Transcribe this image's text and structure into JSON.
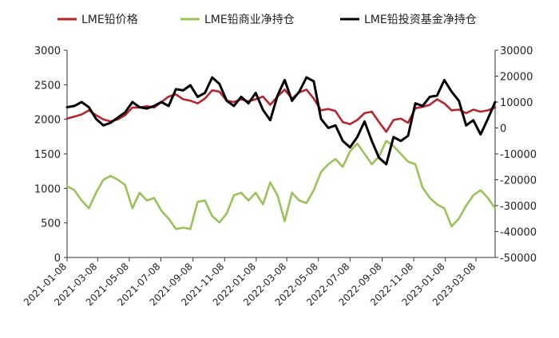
{
  "chart_data": {
    "type": "line",
    "title": "",
    "legend_position": "top",
    "grid": false,
    "x_axis": {
      "tick_labels": [
        "2021-01-08",
        "2021-03-08",
        "2021-05-08",
        "2021-07-08",
        "2021-09-08",
        "2021-11-08",
        "2022-01-08",
        "2022-03-08",
        "2022-05-08",
        "2022-07-08",
        "2022-09-08",
        "2022-11-08",
        "2023-01-08",
        "2023-03-08"
      ]
    },
    "y_left": {
      "range": [
        0,
        3000
      ],
      "ticks": [
        0,
        500,
        1000,
        1500,
        2000,
        2500,
        3000
      ]
    },
    "y_right": {
      "range": [
        -50000,
        30000
      ],
      "ticks": [
        -50000,
        -40000,
        -30000,
        -20000,
        -10000,
        0,
        10000,
        20000,
        30000
      ]
    },
    "series": [
      {
        "name": "LME铅价格",
        "axis": "left",
        "color": "#b5262e",
        "points": [
          [
            "2021-01-08",
            2010
          ],
          [
            "2021-01-22",
            2040
          ],
          [
            "2021-02-05",
            2070
          ],
          [
            "2021-02-19",
            2130
          ],
          [
            "2021-03-05",
            2060
          ],
          [
            "2021-03-19",
            2000
          ],
          [
            "2021-04-02",
            1970
          ],
          [
            "2021-04-16",
            2000
          ],
          [
            "2021-04-30",
            2060
          ],
          [
            "2021-05-14",
            2170
          ],
          [
            "2021-05-28",
            2170
          ],
          [
            "2021-06-11",
            2190
          ],
          [
            "2021-06-25",
            2170
          ],
          [
            "2021-07-09",
            2250
          ],
          [
            "2021-07-23",
            2330
          ],
          [
            "2021-08-06",
            2360
          ],
          [
            "2021-08-20",
            2290
          ],
          [
            "2021-09-03",
            2270
          ],
          [
            "2021-09-17",
            2230
          ],
          [
            "2021-10-01",
            2300
          ],
          [
            "2021-10-15",
            2420
          ],
          [
            "2021-10-29",
            2400
          ],
          [
            "2021-11-12",
            2270
          ],
          [
            "2021-11-26",
            2250
          ],
          [
            "2021-12-10",
            2290
          ],
          [
            "2021-12-24",
            2260
          ],
          [
            "2022-01-07",
            2290
          ],
          [
            "2022-01-21",
            2330
          ],
          [
            "2022-02-04",
            2210
          ],
          [
            "2022-02-18",
            2330
          ],
          [
            "2022-03-04",
            2430
          ],
          [
            "2022-03-18",
            2300
          ],
          [
            "2022-04-01",
            2390
          ],
          [
            "2022-04-15",
            2430
          ],
          [
            "2022-04-29",
            2300
          ],
          [
            "2022-05-13",
            2130
          ],
          [
            "2022-05-27",
            2150
          ],
          [
            "2022-06-10",
            2120
          ],
          [
            "2022-06-24",
            1960
          ],
          [
            "2022-07-08",
            1930
          ],
          [
            "2022-07-22",
            1990
          ],
          [
            "2022-08-05",
            2090
          ],
          [
            "2022-08-19",
            2110
          ],
          [
            "2022-09-02",
            1960
          ],
          [
            "2022-09-16",
            1820
          ],
          [
            "2022-09-30",
            1990
          ],
          [
            "2022-10-14",
            2010
          ],
          [
            "2022-10-28",
            1950
          ],
          [
            "2022-11-11",
            2160
          ],
          [
            "2022-11-25",
            2180
          ],
          [
            "2022-12-09",
            2210
          ],
          [
            "2022-12-23",
            2290
          ],
          [
            "2023-01-06",
            2230
          ],
          [
            "2023-01-20",
            2130
          ],
          [
            "2023-02-03",
            2140
          ],
          [
            "2023-02-17",
            2090
          ],
          [
            "2023-03-03",
            2140
          ],
          [
            "2023-03-17",
            2110
          ],
          [
            "2023-03-31",
            2130
          ],
          [
            "2023-04-14",
            2170
          ]
        ]
      },
      {
        "name": "LME铅商业净持仓",
        "axis": "right",
        "color": "#9dc15a",
        "points": [
          [
            "2021-01-08",
            -22500
          ],
          [
            "2021-01-22",
            -24000
          ],
          [
            "2021-02-05",
            -28000
          ],
          [
            "2021-02-19",
            -31000
          ],
          [
            "2021-03-05",
            -25000
          ],
          [
            "2021-03-19",
            -20000
          ],
          [
            "2021-04-02",
            -18500
          ],
          [
            "2021-04-16",
            -20000
          ],
          [
            "2021-04-30",
            -22000
          ],
          [
            "2021-05-14",
            -31000
          ],
          [
            "2021-05-28",
            -25000
          ],
          [
            "2021-06-11",
            -28000
          ],
          [
            "2021-06-25",
            -27000
          ],
          [
            "2021-07-09",
            -32000
          ],
          [
            "2021-07-23",
            -35000
          ],
          [
            "2021-08-06",
            -39000
          ],
          [
            "2021-08-20",
            -38500
          ],
          [
            "2021-09-03",
            -39000
          ],
          [
            "2021-09-17",
            -28500
          ],
          [
            "2021-10-01",
            -28000
          ],
          [
            "2021-10-15",
            -34000
          ],
          [
            "2021-10-29",
            -36500
          ],
          [
            "2021-11-12",
            -33000
          ],
          [
            "2021-11-26",
            -26000
          ],
          [
            "2021-12-10",
            -25000
          ],
          [
            "2021-12-24",
            -28000
          ],
          [
            "2022-01-07",
            -25000
          ],
          [
            "2022-01-21",
            -29500
          ],
          [
            "2022-02-04",
            -21000
          ],
          [
            "2022-02-18",
            -26000
          ],
          [
            "2022-03-04",
            -36000
          ],
          [
            "2022-03-18",
            -25000
          ],
          [
            "2022-04-01",
            -28000
          ],
          [
            "2022-04-15",
            -29000
          ],
          [
            "2022-04-29",
            -24000
          ],
          [
            "2022-05-13",
            -17000
          ],
          [
            "2022-05-27",
            -14000
          ],
          [
            "2022-06-10",
            -12000
          ],
          [
            "2022-06-24",
            -15000
          ],
          [
            "2022-07-08",
            -9000
          ],
          [
            "2022-07-22",
            -6000
          ],
          [
            "2022-08-05",
            -10000
          ],
          [
            "2022-08-19",
            -14000
          ],
          [
            "2022-09-02",
            -11000
          ],
          [
            "2022-09-16",
            -5000
          ],
          [
            "2022-09-30",
            -7000
          ],
          [
            "2022-10-14",
            -10000
          ],
          [
            "2022-10-28",
            -13000
          ],
          [
            "2022-11-11",
            -14000
          ],
          [
            "2022-11-25",
            -23000
          ],
          [
            "2022-12-09",
            -27000
          ],
          [
            "2022-12-23",
            -29500
          ],
          [
            "2023-01-06",
            -31000
          ],
          [
            "2023-01-20",
            -38000
          ],
          [
            "2023-02-03",
            -35000
          ],
          [
            "2023-02-17",
            -30000
          ],
          [
            "2023-03-03",
            -26000
          ],
          [
            "2023-03-17",
            -24000
          ],
          [
            "2023-03-31",
            -27000
          ],
          [
            "2023-04-14",
            -31000
          ]
        ]
      },
      {
        "name": "LME铅投资基金净持仓",
        "axis": "right",
        "color": "#000000",
        "points": [
          [
            "2021-01-08",
            8000
          ],
          [
            "2021-01-22",
            8500
          ],
          [
            "2021-02-05",
            10000
          ],
          [
            "2021-02-19",
            8000
          ],
          [
            "2021-03-05",
            3500
          ],
          [
            "2021-03-19",
            1000
          ],
          [
            "2021-04-02",
            2000
          ],
          [
            "2021-04-16",
            4000
          ],
          [
            "2021-04-30",
            6000
          ],
          [
            "2021-05-14",
            10000
          ],
          [
            "2021-05-28",
            8000
          ],
          [
            "2021-06-11",
            7500
          ],
          [
            "2021-06-25",
            8500
          ],
          [
            "2021-07-09",
            10000
          ],
          [
            "2021-07-23",
            8500
          ],
          [
            "2021-08-06",
            15000
          ],
          [
            "2021-08-20",
            14500
          ],
          [
            "2021-09-03",
            16500
          ],
          [
            "2021-09-17",
            12000
          ],
          [
            "2021-10-01",
            13500
          ],
          [
            "2021-10-15",
            19500
          ],
          [
            "2021-10-29",
            17000
          ],
          [
            "2021-11-12",
            10500
          ],
          [
            "2021-11-26",
            8500
          ],
          [
            "2021-12-10",
            12000
          ],
          [
            "2021-12-24",
            9500
          ],
          [
            "2022-01-07",
            13500
          ],
          [
            "2022-01-21",
            7000
          ],
          [
            "2022-02-04",
            3000
          ],
          [
            "2022-02-18",
            12500
          ],
          [
            "2022-03-04",
            18500
          ],
          [
            "2022-03-18",
            10500
          ],
          [
            "2022-04-01",
            14000
          ],
          [
            "2022-04-15",
            19500
          ],
          [
            "2022-04-29",
            18000
          ],
          [
            "2022-05-13",
            3500
          ],
          [
            "2022-05-27",
            0
          ],
          [
            "2022-06-10",
            1000
          ],
          [
            "2022-06-24",
            -5000
          ],
          [
            "2022-07-08",
            -7500
          ],
          [
            "2022-07-22",
            -3500
          ],
          [
            "2022-08-05",
            2500
          ],
          [
            "2022-08-19",
            -5000
          ],
          [
            "2022-09-02",
            -11500
          ],
          [
            "2022-09-16",
            -14000
          ],
          [
            "2022-09-30",
            -3500
          ],
          [
            "2022-10-14",
            -5000
          ],
          [
            "2022-10-28",
            -3000
          ],
          [
            "2022-11-11",
            9500
          ],
          [
            "2022-11-25",
            8500
          ],
          [
            "2022-12-09",
            12000
          ],
          [
            "2022-12-23",
            12500
          ],
          [
            "2023-01-06",
            18500
          ],
          [
            "2023-01-20",
            14000
          ],
          [
            "2023-02-03",
            10500
          ],
          [
            "2023-02-17",
            1000
          ],
          [
            "2023-03-03",
            3000
          ],
          [
            "2023-03-17",
            -2500
          ],
          [
            "2023-03-31",
            3500
          ],
          [
            "2023-04-14",
            10000
          ]
        ]
      }
    ]
  }
}
